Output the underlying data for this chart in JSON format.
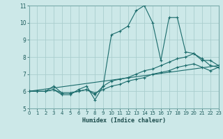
{
  "xlabel": "Humidex (Indice chaleur)",
  "xlim": [
    0,
    23
  ],
  "ylim": [
    5,
    11
  ],
  "xticks": [
    0,
    1,
    2,
    3,
    4,
    5,
    6,
    7,
    8,
    9,
    10,
    11,
    12,
    13,
    14,
    15,
    16,
    17,
    18,
    19,
    20,
    21,
    22,
    23
  ],
  "yticks": [
    5,
    6,
    7,
    8,
    9,
    10,
    11
  ],
  "bg_color": "#cce8e8",
  "grid_color": "#aacece",
  "line_color": "#1a6b6b",
  "line1_x": [
    0,
    1,
    2,
    3,
    4,
    5,
    6,
    7,
    8,
    9,
    10,
    11,
    12,
    13,
    14,
    15,
    16,
    17,
    18,
    19,
    20,
    21,
    22,
    23
  ],
  "line1_y": [
    6.0,
    6.0,
    6.0,
    6.1,
    5.8,
    5.8,
    6.1,
    6.3,
    5.5,
    6.3,
    9.3,
    9.5,
    9.8,
    10.7,
    11.0,
    10.0,
    7.8,
    10.3,
    10.3,
    8.3,
    8.2,
    7.8,
    7.8,
    7.5
  ],
  "line2_x": [
    0,
    1,
    2,
    3,
    4,
    5,
    6,
    7,
    8,
    9,
    10,
    11,
    12,
    13,
    14,
    15,
    16,
    17,
    18,
    19,
    20,
    21,
    22,
    23
  ],
  "line2_y": [
    6.0,
    6.0,
    6.0,
    6.3,
    5.9,
    5.9,
    6.0,
    6.1,
    5.8,
    6.3,
    6.6,
    6.7,
    6.8,
    7.0,
    7.2,
    7.3,
    7.5,
    7.7,
    7.9,
    8.0,
    8.2,
    7.9,
    7.5,
    7.4
  ],
  "line3_x": [
    0,
    1,
    2,
    3,
    4,
    5,
    6,
    7,
    8,
    9,
    10,
    11,
    12,
    13,
    14,
    15,
    16,
    17,
    18,
    19,
    20,
    21,
    22,
    23
  ],
  "line3_y": [
    6.0,
    6.0,
    6.0,
    6.1,
    5.9,
    5.9,
    6.0,
    6.1,
    5.9,
    6.1,
    6.3,
    6.4,
    6.6,
    6.7,
    6.8,
    7.0,
    7.1,
    7.2,
    7.4,
    7.5,
    7.6,
    7.4,
    7.2,
    7.4
  ],
  "line4_x": [
    0,
    23
  ],
  "line4_y": [
    6.0,
    7.5
  ]
}
